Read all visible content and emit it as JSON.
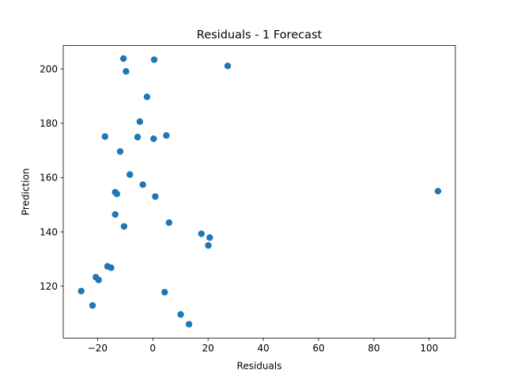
{
  "chart_data": {
    "type": "scatter",
    "title": "Residuals - 1 Forecast",
    "xlabel": "Residuals",
    "ylabel": "Prediction",
    "xlim": [
      -32.4,
      109.5
    ],
    "ylim": [
      100.9,
      208.6
    ],
    "xticks": [
      -20,
      0,
      20,
      40,
      60,
      80,
      100
    ],
    "yticks": [
      120,
      140,
      160,
      180,
      200
    ],
    "grid": false,
    "marker_color": "#1f77b4",
    "points": [
      {
        "x": -10.6,
        "y": 203.8
      },
      {
        "x": 0.5,
        "y": 203.4
      },
      {
        "x": 27.1,
        "y": 201.1
      },
      {
        "x": -9.7,
        "y": 199.1
      },
      {
        "x": -2.1,
        "y": 189.7
      },
      {
        "x": -4.7,
        "y": 180.6
      },
      {
        "x": -17.3,
        "y": 175.1
      },
      {
        "x": -5.5,
        "y": 174.9
      },
      {
        "x": 0.3,
        "y": 174.3
      },
      {
        "x": 4.9,
        "y": 175.5
      },
      {
        "x": -11.8,
        "y": 169.6
      },
      {
        "x": -8.3,
        "y": 161.1
      },
      {
        "x": -3.6,
        "y": 157.4
      },
      {
        "x": -13.6,
        "y": 154.6
      },
      {
        "x": -13.0,
        "y": 154.0
      },
      {
        "x": 0.9,
        "y": 153.0
      },
      {
        "x": 103.2,
        "y": 155.0
      },
      {
        "x": -13.6,
        "y": 146.4
      },
      {
        "x": 5.9,
        "y": 143.4
      },
      {
        "x": -10.4,
        "y": 142.0
      },
      {
        "x": 17.6,
        "y": 139.3
      },
      {
        "x": 20.6,
        "y": 137.9
      },
      {
        "x": 20.1,
        "y": 135.0
      },
      {
        "x": -16.4,
        "y": 127.3
      },
      {
        "x": -15.1,
        "y": 126.8
      },
      {
        "x": -20.6,
        "y": 123.3
      },
      {
        "x": -19.6,
        "y": 122.3
      },
      {
        "x": -25.9,
        "y": 118.2
      },
      {
        "x": 4.3,
        "y": 117.8
      },
      {
        "x": -21.8,
        "y": 112.9
      },
      {
        "x": 10.1,
        "y": 109.6
      },
      {
        "x": 13.1,
        "y": 106.0
      }
    ]
  }
}
